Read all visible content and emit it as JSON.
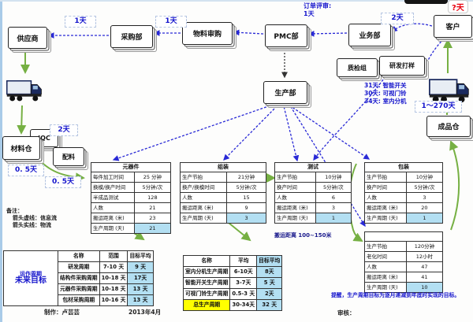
{
  "flow_boxes": {
    "supplier": "供应商",
    "purchasing": "采购部",
    "material_review": "物料审购",
    "pmc": "PMC部",
    "sales": "业务部",
    "customer": "客户",
    "qc_team": "质检组",
    "rd_sample": "研发打样",
    "production": "生产部",
    "iqc": "IQC",
    "material_store": "材料仓",
    "batching": "配料",
    "finished_store": "成品仓"
  },
  "time_labels": {
    "supplier_purchasing": "1天",
    "purchasing_review": "1天",
    "order_review_line1": "订单评审:",
    "order_review_line2": "1天",
    "sales_customer": "2天",
    "customer_top": "?天",
    "iqc": "2天",
    "material_1": "0. 5天",
    "material_2": "0. 5天",
    "shipping": "1～270天"
  },
  "product_leadtimes": [
    "31天: 智能开关",
    "30天: 可视门铃",
    "34天: 室内分机"
  ],
  "transport_note": "搬运距离 100~150米",
  "process_tables": [
    {
      "title": "元器件",
      "rows": [
        [
          "每件加工时间",
          "25 分钟"
        ],
        [
          "换模/换产时间",
          "5分钟/次"
        ],
        [
          "半成品测试",
          "128"
        ],
        [
          "人数",
          "21"
        ],
        [
          "搬运距离 (米)",
          "23"
        ],
        [
          "生产周期 (天)",
          "21"
        ]
      ]
    },
    {
      "title": "组装",
      "rows": [
        [
          "生产节拍",
          "21分钟"
        ],
        [
          "换产/换模时间",
          "5分钟/次"
        ],
        [
          "人数",
          "15"
        ],
        [
          "搬运距离 (米)",
          "9"
        ],
        [
          "生产周期 (天)",
          "3"
        ]
      ]
    },
    {
      "title": "测试",
      "rows": [
        [
          "生产节拍",
          "10分钟"
        ],
        [
          "换产时间",
          "5分钟/次"
        ],
        [
          "人数",
          "6"
        ],
        [
          "搬运距离 (米)",
          "3"
        ],
        [
          "生产周期 (天)",
          "1"
        ]
      ]
    },
    {
      "title": "包装",
      "rows": [
        [
          "生产节拍",
          "10分钟"
        ],
        [
          "换产时间",
          "5分钟/次"
        ],
        [
          "人数",
          "3"
        ],
        [
          "搬运距离 (米)",
          "20"
        ],
        [
          "生产周期 (天)",
          "1"
        ]
      ]
    },
    {
      "title": "",
      "rows": [
        [
          "生产节拍",
          "120分钟"
        ],
        [
          "老化时间",
          "12小时"
        ],
        [
          "人数",
          "47"
        ],
        [
          "搬运距离 (米)",
          "41"
        ],
        [
          "生产周期 (天)",
          "10"
        ]
      ]
    }
  ],
  "summary_tables": [
    {
      "goal_label_1": "运作周期",
      "goal_label_2": "未来目标",
      "headers": [
        "名称",
        "范围",
        "目标平均"
      ],
      "rows": [
        [
          "研发周期",
          "7-10 天",
          "9 天"
        ],
        [
          "结构件采购周期",
          "10-18 天",
          "17天"
        ],
        [
          "元器件采购周期",
          "10-18 天",
          "13 天"
        ],
        [
          "包材采购周期",
          "10-16 天",
          "13 天"
        ]
      ]
    },
    {
      "headers": [
        "名称",
        "平均",
        "目标平均"
      ],
      "rows": [
        [
          "室内分机生产周期",
          "6-10天",
          "8天"
        ],
        [
          "智能开关生产周期",
          "3-7天",
          "5 天"
        ],
        [
          "可视门铃生产周期",
          "0.5-3 天",
          "2天"
        ],
        [
          "总生产周期",
          "30-34天",
          "32 天"
        ]
      ],
      "yellow_row": 3
    }
  ],
  "notes": {
    "remark_title": "备注：",
    "remark_dashed": "箭头虚线：信息流",
    "remark_solid": "箭头实线：物流",
    "reminder": "提醒，生产周期目标为逐月递减到年底时实现的目标。"
  },
  "footer": {
    "made_by": "制作：卢芸芸",
    "date": "2013年4月",
    "review": "审核："
  },
  "colors": {
    "info_flow": "#2929d6",
    "material_flow": "#76b043",
    "accent_blue": "#1414cc",
    "alert_red": "#e8000d",
    "highlight_blue": "#b3dff2",
    "highlight_yellow": "#ffff00"
  }
}
